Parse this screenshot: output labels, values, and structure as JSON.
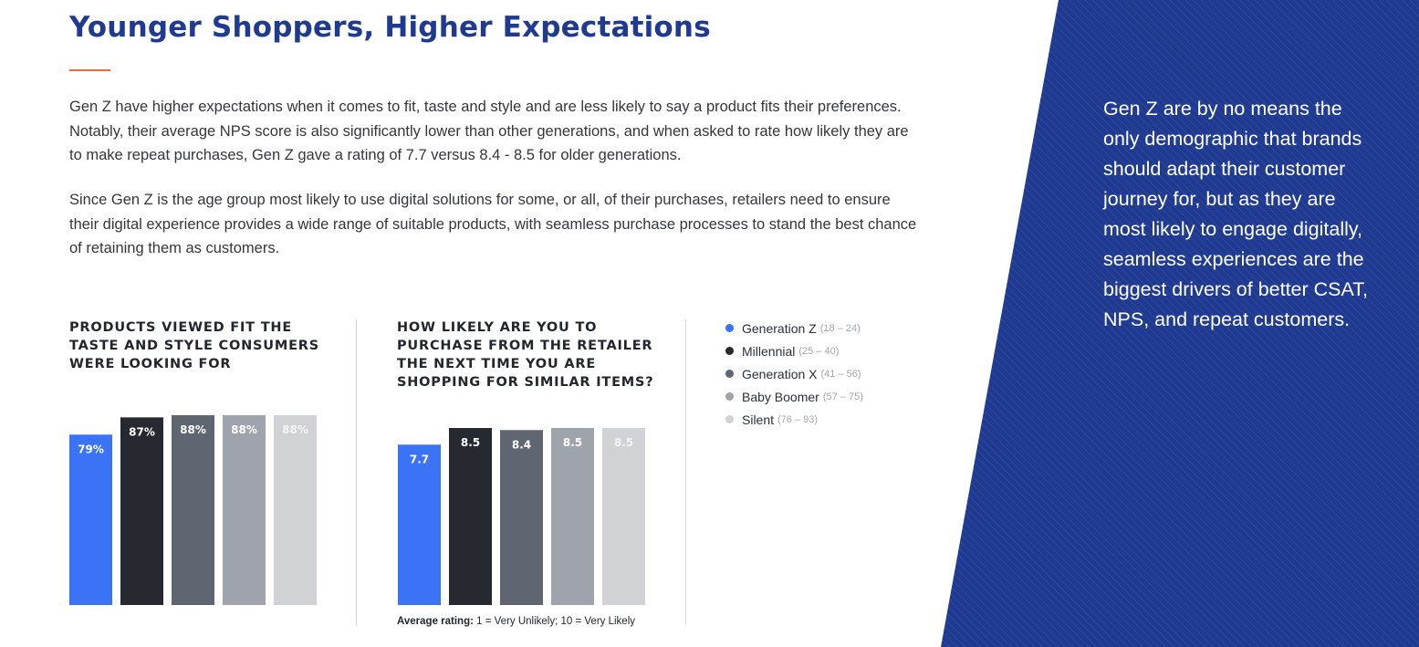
{
  "header": {
    "title": "Younger Shoppers, Higher Expectations"
  },
  "body": {
    "paragraph1": "Gen Z have higher expectations when it comes to fit, taste and style and are less likely to say a product fits their preferences. Notably, their average NPS score is also significantly lower than other generations, and when asked to rate how likely they are to make repeat purchases, Gen Z gave a rating of 7.7 versus 8.4 - 8.5 for older generations.",
    "paragraph2": "Since Gen Z is the age group most likely to use digital solutions for some, or all, of their purchases, retailers need to ensure their digital experience provides a wide range of suitable products, with seamless purchase processes to stand the best chance of retaining them as customers."
  },
  "sidebar": {
    "quote": "Gen Z are by no means the only demographic that brands should adapt their customer journey for, but as they are most likely to engage digitally, seamless experiences are the biggest drivers of better CSAT, NPS, and repeat customers.",
    "background_color": "#1f3a8f"
  },
  "legend": [
    {
      "name": "Generation Z",
      "range": "(18 – 24)",
      "color": "#3b73f7"
    },
    {
      "name": "Millennial",
      "range": "(25 – 40)",
      "color": "#262930"
    },
    {
      "name": "Generation X",
      "range": "(41 – 56)",
      "color": "#5f6672"
    },
    {
      "name": "Baby Boomer",
      "range": "(57 – 75)",
      "color": "#9fa4ac"
    },
    {
      "name": "Silent",
      "range": "(76 – 93)",
      "color": "#d0d2d6"
    }
  ],
  "footnote": {
    "bold": "Average rating:",
    "text": " 1 = Very Unlikely; 10 = Very Likely"
  },
  "chart_data": [
    {
      "type": "bar",
      "title": "PRODUCTS VIEWED FIT THE TASTE AND STYLE CONSUMERS WERE LOOKING FOR",
      "categories": [
        "Generation Z",
        "Millennial",
        "Generation X",
        "Baby Boomer",
        "Silent"
      ],
      "values": [
        79,
        87,
        88,
        88,
        88
      ],
      "labels": [
        "79%",
        "87%",
        "88%",
        "88%",
        "88%"
      ],
      "ylim": [
        0,
        88
      ],
      "grid": false
    },
    {
      "type": "bar",
      "title": "HOW LIKELY ARE YOU TO PURCHASE FROM THE RETAILER THE NEXT TIME YOU ARE SHOPPING FOR SIMILAR ITEMS?",
      "categories": [
        "Generation Z",
        "Millennial",
        "Generation X",
        "Baby Boomer",
        "Silent"
      ],
      "values": [
        7.7,
        8.5,
        8.4,
        8.5,
        8.5
      ],
      "labels": [
        "7.7",
        "8.5",
        "8.4",
        "8.5",
        "8.5"
      ],
      "ylim": [
        0,
        8.5
      ],
      "grid": false
    }
  ]
}
